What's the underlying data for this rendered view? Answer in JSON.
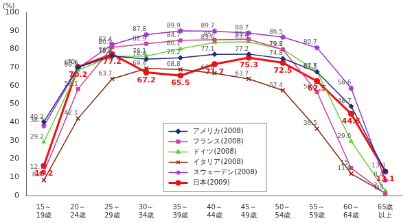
{
  "chart_data": {
    "type": "line",
    "ylabel": "(%)",
    "categories": [
      "15～19歳",
      "20～24歳",
      "25～29歳",
      "30～34歳",
      "35～39歳",
      "40～44歳",
      "45～49歳",
      "50～54歳",
      "55～59歳",
      "60～64歳",
      "65歳以上"
    ],
    "series": [
      {
        "name": "アメリカ(2008)",
        "color": "#1f2a78",
        "marker": "diamond",
        "line_style": "solid",
        "values": [
          40.2,
          70.0,
          76.2,
          74.4,
          75.2,
          77.1,
          77.2,
          74.8,
          67.5,
          48.7,
          13.3
        ]
      },
      {
        "name": "フランス(2008)",
        "color": "#cc4499",
        "marker": "square",
        "line_style": "solid",
        "values": [
          12.7,
          58.1,
          80.9,
          82.9,
          84.7,
          85.0,
          85.3,
          79.7,
          56.5,
          15.0,
          1.0
        ]
      },
      {
        "name": "ドイツ(2008)",
        "color": "#66cc33",
        "marker": "triangle",
        "line_style": "solid",
        "values": [
          29.2,
          68.5,
          75.9,
          76.1,
          80.1,
          83.6,
          83.9,
          79.8,
          67.7,
          29.6,
          2.5
        ]
      },
      {
        "name": "イタリア(2008)",
        "color": "#8b2a10",
        "marker": "x",
        "line_style": "solid",
        "values": [
          8.4,
          42.1,
          63.7,
          69.4,
          68.8,
          66.8,
          63.7,
          57.4,
          36.5,
          11.9,
          1.3
        ]
      },
      {
        "name": "スウェーデン(2008)",
        "color": "#9933cc",
        "marker": "star",
        "line_style": "solid",
        "values": [
          38.1,
          69.6,
          82.4,
          87.8,
          89.9,
          89.7,
          88.7,
          86.5,
          80.7,
          58.6,
          8.4
        ]
      },
      {
        "name": "日本(2009)",
        "color": "#ee1111",
        "marker": "circle",
        "line_style": "thick",
        "values": [
          16.2,
          70.2,
          77.2,
          67.2,
          65.5,
          71.7,
          75.3,
          72.5,
          62.5,
          44.6,
          13.1
        ]
      }
    ],
    "ylim": [
      0,
      100
    ],
    "yticks": [
      0,
      10,
      20,
      30,
      40,
      50,
      60,
      70,
      80,
      90,
      100
    ],
    "grid": false,
    "legend": "bottom",
    "data_labels": true
  }
}
